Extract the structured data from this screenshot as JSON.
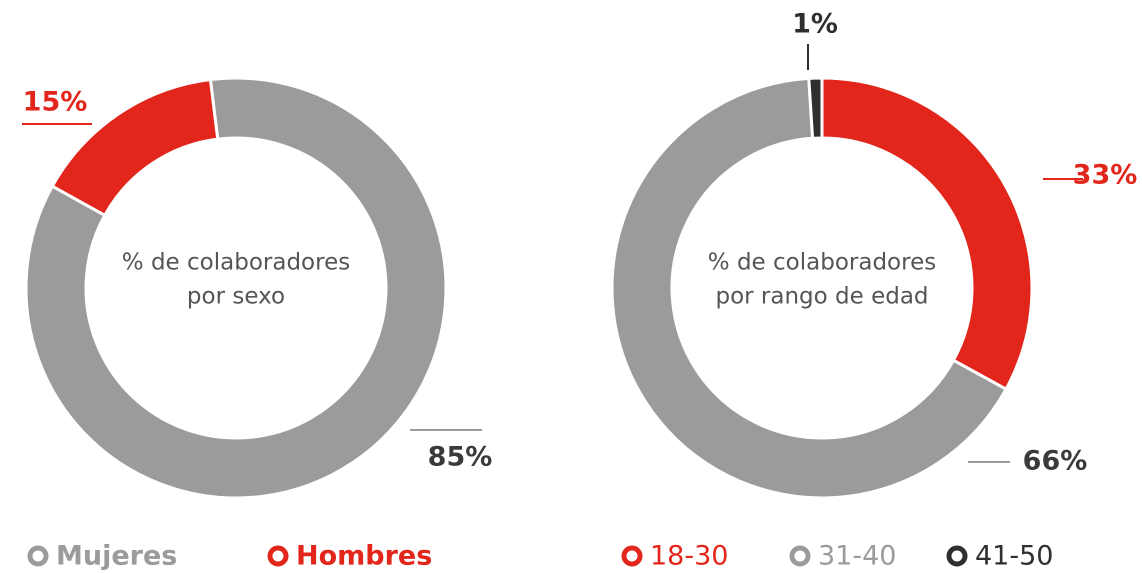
{
  "chart_data": [
    {
      "type": "pie",
      "title": [
        "% de colaboradores",
        "por sexo"
      ],
      "categories": [
        "Mujeres",
        "Hombres"
      ],
      "values": [
        85,
        15
      ],
      "value_labels": [
        "85%",
        "15%"
      ],
      "colors": [
        "#9b9b9b",
        "#e3261c"
      ],
      "legend": "bottom"
    },
    {
      "type": "pie",
      "title": [
        "% de colaboradores",
        "por rango de edad"
      ],
      "categories": [
        "18-30",
        "31-40",
        "41-50"
      ],
      "values": [
        33,
        66,
        1
      ],
      "value_labels": [
        "33%",
        "66%",
        "1%"
      ],
      "colors": [
        "#e3261c",
        "#9b9b9b",
        "#2f2f2f"
      ],
      "legend": "bottom"
    }
  ]
}
